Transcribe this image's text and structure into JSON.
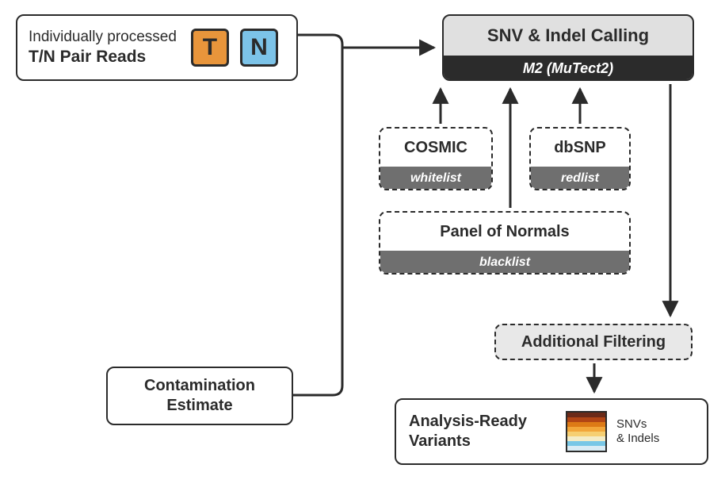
{
  "diagram": {
    "type": "flowchart",
    "background_color": "#ffffff",
    "text_color": "#2b2b2b",
    "arrow_color": "#2b2b2b",
    "arrow_width": 3
  },
  "tn": {
    "line1": "Individually processed",
    "line2": "T/N Pair Reads",
    "chipT": {
      "label": "T",
      "bg": "#e8953b"
    },
    "chipN": {
      "label": "N",
      "bg": "#7cc3e8"
    }
  },
  "snv": {
    "title": "SNV & Indel Calling",
    "subtitle": "M2 (MuTect2)",
    "title_bg": "#e0e0e0",
    "bar_bg": "#2b2b2b",
    "bar_text": "#ffffff"
  },
  "cosmic": {
    "title": "COSMIC",
    "subtitle": "whitelist",
    "bar_bg": "#6f6f6f"
  },
  "dbsnp": {
    "title": "dbSNP",
    "subtitle": "redlist",
    "bar_bg": "#6f6f6f"
  },
  "pon": {
    "title": "Panel of Normals",
    "subtitle": "blacklist",
    "bar_bg": "#6f6f6f"
  },
  "addfilt": {
    "label": "Additional Filtering",
    "bg": "#e8e8e8"
  },
  "contam": {
    "line1": "Contamination",
    "line2": "Estimate"
  },
  "arv": {
    "line1": "Analysis-Ready",
    "line2": "Variants",
    "caption1": "SNVs",
    "caption2": "& Indels",
    "swatch_colors": [
      "#6b2a18",
      "#b14515",
      "#dd7a16",
      "#f2a63a",
      "#f6cf72",
      "#f4ecc7",
      "#78c7e6",
      "#d9ecf5"
    ]
  }
}
